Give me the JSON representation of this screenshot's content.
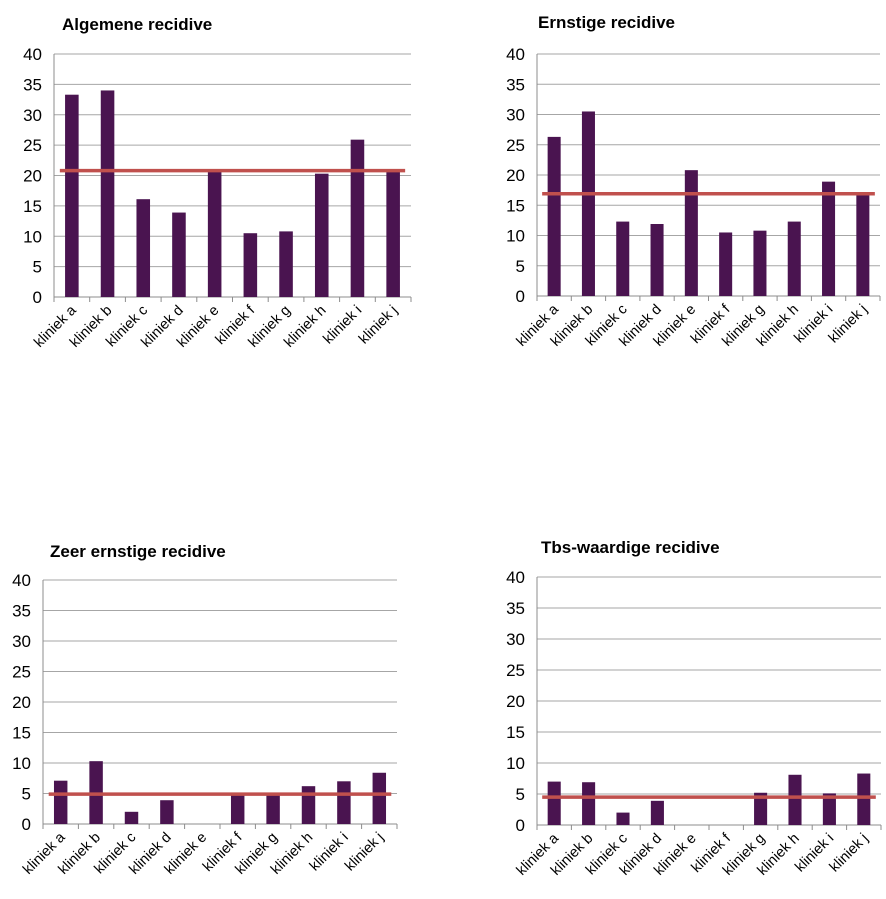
{
  "colors": {
    "bar": "#4a1450",
    "average": "#c0504d"
  },
  "chart_data": [
    {
      "type": "bar",
      "title": "Algemene recidive",
      "categories": [
        "kliniek a",
        "kliniek b",
        "kliniek c",
        "kliniek d",
        "kliniek e",
        "kliniek f",
        "kliniek g",
        "kliniek h",
        "kliniek i",
        "kliniek j"
      ],
      "values": [
        33.3,
        34.0,
        16.1,
        13.9,
        20.8,
        10.5,
        10.8,
        20.3,
        25.9,
        20.8
      ],
      "average": 20.8,
      "yticks": [
        0,
        5,
        10,
        15,
        20,
        25,
        30,
        35,
        40
      ],
      "ylim": [
        0,
        40
      ],
      "grid": true
    },
    {
      "type": "bar",
      "title": "Ernstige recidive",
      "categories": [
        "kliniek a",
        "kliniek b",
        "kliniek c",
        "kliniek d",
        "kliniek e",
        "kliniek f",
        "kliniek g",
        "kliniek h",
        "kliniek i",
        "kliniek j"
      ],
      "values": [
        26.3,
        30.5,
        12.3,
        11.9,
        20.8,
        10.5,
        10.8,
        12.3,
        18.9,
        16.7
      ],
      "average": 16.9,
      "yticks": [
        0,
        5,
        10,
        15,
        20,
        25,
        30,
        35,
        40
      ],
      "ylim": [
        0,
        40
      ],
      "grid": true
    },
    {
      "type": "bar",
      "title": "Zeer ernstige recidive",
      "categories": [
        "kliniek a",
        "kliniek b",
        "kliniek c",
        "kliniek d",
        "kliniek e",
        "kliniek f",
        "kliniek g",
        "kliniek h",
        "kliniek i",
        "kliniek j"
      ],
      "values": [
        7.1,
        10.3,
        2.0,
        3.9,
        0,
        4.8,
        4.8,
        6.2,
        7.0,
        8.4
      ],
      "average": 4.9,
      "yticks": [
        0,
        5,
        10,
        15,
        20,
        25,
        30,
        35,
        40
      ],
      "ylim": [
        0,
        40
      ],
      "grid": true
    },
    {
      "type": "bar",
      "title": "Tbs-waardige recidive",
      "categories": [
        "kliniek a",
        "kliniek b",
        "kliniek c",
        "kliniek d",
        "kliniek e",
        "kliniek f",
        "kliniek g",
        "kliniek h",
        "kliniek i",
        "kliniek j"
      ],
      "values": [
        7.0,
        6.9,
        2.0,
        3.9,
        0,
        0,
        5.2,
        8.1,
        5.1,
        8.3
      ],
      "average": 4.5,
      "yticks": [
        0,
        5,
        10,
        15,
        20,
        25,
        30,
        35,
        40
      ],
      "ylim": [
        0,
        40
      ],
      "grid": true
    }
  ]
}
